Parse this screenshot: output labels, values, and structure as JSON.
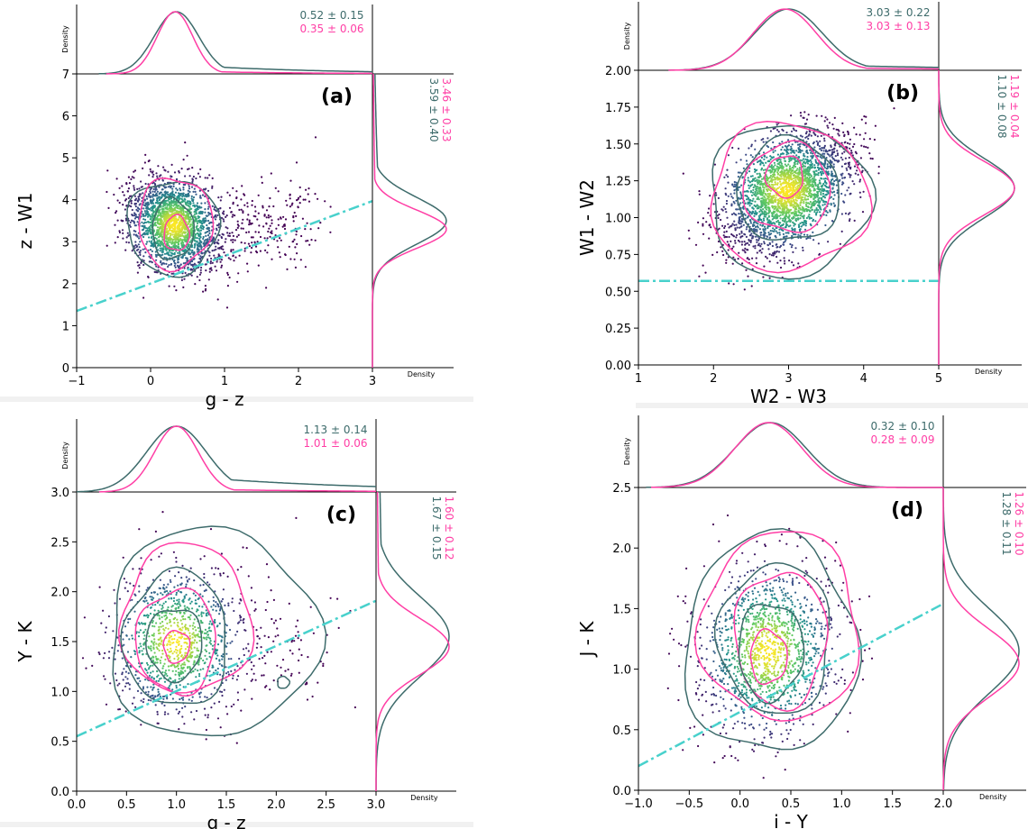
{
  "figure": {
    "density_label": "Density"
  },
  "colors": {
    "sample_a": "#3d6b6b",
    "sample_b": "#ff3ea5",
    "cut_line": "#48d1cc",
    "spine": "#000000"
  },
  "chart_data": [
    {
      "type": "scatter",
      "panel_label": "(a)",
      "xlabel": "g - z",
      "ylabel": "z - W1",
      "xlim": [
        -1,
        3
      ],
      "ylim": [
        0,
        7
      ],
      "xticks": [
        -1,
        0,
        1,
        2,
        3
      ],
      "xtick_labels": [
        "−1",
        "0",
        "1",
        "2",
        "3"
      ],
      "yticks": [
        0,
        1,
        2,
        3,
        4,
        5,
        6,
        7
      ],
      "ytick_labels": [
        "0",
        "1",
        "2",
        "3",
        "4",
        "5",
        "6",
        "7"
      ],
      "grid": false,
      "cloud": {
        "center": [
          0.32,
          3.4
        ],
        "sigma": [
          0.3,
          0.55
        ],
        "rho": -0.25,
        "count": 2400,
        "tail_x": 1.6
      },
      "contours": [
        {
          "series": "sample_a",
          "center": [
            0.3,
            3.35
          ],
          "radius": [
            0.62,
            1.12
          ]
        },
        {
          "series": "sample_b",
          "center": [
            0.33,
            3.45
          ],
          "radius": [
            0.5,
            1.08
          ]
        },
        {
          "series": "sample_a",
          "center": [
            0.3,
            3.3
          ],
          "radius": [
            0.28,
            0.72
          ]
        },
        {
          "series": "sample_b",
          "center": [
            0.35,
            3.2
          ],
          "radius": [
            0.17,
            0.42
          ]
        }
      ],
      "cut_line": {
        "x": [
          -1,
          3
        ],
        "y": [
          1.35,
          3.97
        ]
      },
      "stats_x": [
        "0.52 ± 0.15",
        "0.35 ± 0.06"
      ],
      "stats_y": [
        "3.59 ± 0.40",
        "3.46 ± 0.33"
      ],
      "marginal_x": [
        {
          "series": "sample_a",
          "mu": 0.35,
          "sigma": 0.3,
          "tail": 0.15
        },
        {
          "series": "sample_b",
          "mu": 0.33,
          "sigma": 0.24,
          "tail": 0.05
        }
      ],
      "marginal_y": [
        {
          "series": "sample_a",
          "mu": 3.5,
          "sigma": 0.55,
          "tail": 0.1
        },
        {
          "series": "sample_b",
          "mu": 3.3,
          "sigma": 0.45,
          "tail": 0.05
        }
      ]
    },
    {
      "type": "scatter",
      "panel_label": "(b)",
      "xlabel": "W2 - W3",
      "ylabel": "W1 - W2",
      "xlim": [
        1,
        5
      ],
      "ylim": [
        0,
        2
      ],
      "xticks": [
        1,
        2,
        3,
        4,
        5
      ],
      "xtick_labels": [
        "1",
        "2",
        "3",
        "4",
        "5"
      ],
      "yticks": [
        0,
        0.25,
        0.5,
        0.75,
        1,
        1.25,
        1.5,
        1.75,
        2
      ],
      "ytick_labels": [
        "0.00",
        "0.25",
        "0.50",
        "0.75",
        "1.00",
        "1.25",
        "1.50",
        "1.75",
        "2.00"
      ],
      "grid": false,
      "cloud": {
        "center": [
          2.98,
          1.18
        ],
        "sigma": [
          0.42,
          0.2
        ],
        "rho": 0.45,
        "count": 2600,
        "tail_x": 0
      },
      "contours": [
        {
          "series": "sample_a",
          "center": [
            3.0,
            1.12
          ],
          "radius": [
            1.07,
            0.52
          ]
        },
        {
          "series": "sample_b",
          "center": [
            3.0,
            1.14
          ],
          "radius": [
            1.05,
            0.5
          ]
        },
        {
          "series": "sample_a",
          "center": [
            3.0,
            1.18
          ],
          "radius": [
            0.68,
            0.35
          ]
        },
        {
          "series": "sample_b",
          "center": [
            2.98,
            1.2
          ],
          "radius": [
            0.58,
            0.3
          ]
        },
        {
          "series": "sample_b",
          "center": [
            2.95,
            1.28
          ],
          "radius": [
            0.25,
            0.14
          ]
        }
      ],
      "cut_line": {
        "x": [
          1,
          5
        ],
        "y": [
          0.57,
          0.57
        ]
      },
      "stats_x": [
        "3.03 ± 0.22",
        "3.03 ± 0.13"
      ],
      "stats_y": [
        "1.10 ± 0.08",
        "1.19 ± 0.04"
      ],
      "marginal_x": [
        {
          "series": "sample_a",
          "mu": 3.0,
          "sigma": 0.45,
          "tail": 0.1
        },
        {
          "series": "sample_b",
          "mu": 2.95,
          "sigma": 0.42,
          "tail": 0.05
        }
      ],
      "marginal_y": [
        {
          "series": "sample_a",
          "mu": 1.2,
          "sigma": 0.2,
          "tail": 0.0
        },
        {
          "series": "sample_b",
          "mu": 1.2,
          "sigma": 0.18,
          "tail": 0.0
        }
      ]
    },
    {
      "type": "scatter",
      "panel_label": "(c)",
      "xlabel": "g - z",
      "ylabel": "Y - K",
      "xlim": [
        0,
        3
      ],
      "ylim": [
        0,
        3
      ],
      "xticks": [
        0,
        0.5,
        1,
        1.5,
        2,
        2.5,
        3
      ],
      "xtick_labels": [
        "0.0",
        "0.5",
        "1.0",
        "1.5",
        "2.0",
        "2.5",
        "3.0"
      ],
      "yticks": [
        0,
        0.5,
        1,
        1.5,
        2,
        2.5,
        3
      ],
      "ytick_labels": [
        "0.0",
        "0.5",
        "1.0",
        "1.5",
        "2.0",
        "2.5",
        "3.0"
      ],
      "grid": false,
      "cloud": {
        "center": [
          1.0,
          1.5
        ],
        "sigma": [
          0.32,
          0.35
        ],
        "rho": 0.1,
        "count": 1200,
        "tail_x": 1.2
      },
      "contours": [
        {
          "series": "sample_a",
          "center": [
            1.35,
            1.58
          ],
          "radius": [
            1.05,
            1.05
          ]
        },
        {
          "series": "sample_b",
          "center": [
            1.1,
            1.72
          ],
          "radius": [
            0.65,
            0.75
          ]
        },
        {
          "series": "sample_a",
          "center": [
            1.0,
            1.52
          ],
          "radius": [
            0.52,
            0.68
          ]
        },
        {
          "series": "sample_b",
          "center": [
            1.0,
            1.5
          ],
          "radius": [
            0.4,
            0.52
          ]
        },
        {
          "series": "sample_a",
          "center": [
            0.98,
            1.48
          ],
          "radius": [
            0.28,
            0.36
          ]
        },
        {
          "series": "sample_b",
          "center": [
            1.0,
            1.45
          ],
          "radius": [
            0.13,
            0.16
          ]
        },
        {
          "series": "sample_a",
          "center": [
            2.07,
            1.09
          ],
          "radius": [
            0.06,
            0.06
          ]
        }
      ],
      "cut_line": {
        "x": [
          0,
          3
        ],
        "y": [
          0.55,
          1.91
        ]
      },
      "stats_x": [
        "1.13 ± 0.14",
        "1.01 ± 0.06"
      ],
      "stats_y": [
        "1.67 ± 0.15",
        "1.60 ± 0.12"
      ],
      "marginal_x": [
        {
          "series": "sample_a",
          "mu": 1.0,
          "sigma": 0.3,
          "tail": 0.25
        },
        {
          "series": "sample_b",
          "mu": 1.0,
          "sigma": 0.22,
          "tail": 0.05
        }
      ],
      "marginal_y": [
        {
          "series": "sample_a",
          "mu": 1.55,
          "sigma": 0.4,
          "tail": 0.1
        },
        {
          "series": "sample_b",
          "mu": 1.45,
          "sigma": 0.28,
          "tail": 0.05
        }
      ]
    },
    {
      "type": "scatter",
      "panel_label": "(d)",
      "xlabel": "i - Y",
      "ylabel": "J - K",
      "xlim": [
        -1,
        2
      ],
      "ylim": [
        0,
        2.5
      ],
      "xticks": [
        -1,
        -0.5,
        0,
        0.5,
        1,
        1.5,
        2
      ],
      "xtick_labels": [
        "−1.0",
        "−0.5",
        "0.0",
        "0.5",
        "1.0",
        "1.5",
        "2.0"
      ],
      "yticks": [
        0,
        0.5,
        1,
        1.5,
        2,
        2.5
      ],
      "ytick_labels": [
        "0.0",
        "0.5",
        "1.0",
        "1.5",
        "2.0",
        "2.5"
      ],
      "grid": false,
      "cloud": {
        "center": [
          0.28,
          1.15
        ],
        "sigma": [
          0.33,
          0.35
        ],
        "rho": 0.15,
        "count": 1400,
        "tail_x": 0
      },
      "contours": [
        {
          "series": "sample_a",
          "center": [
            0.3,
            1.2
          ],
          "radius": [
            0.85,
            0.9
          ]
        },
        {
          "series": "sample_b",
          "center": [
            0.4,
            1.35
          ],
          "radius": [
            0.78,
            0.78
          ]
        },
        {
          "series": "sample_a",
          "center": [
            0.35,
            1.25
          ],
          "radius": [
            0.55,
            0.62
          ]
        },
        {
          "series": "sample_b",
          "center": [
            0.4,
            1.25
          ],
          "radius": [
            0.45,
            0.56
          ]
        },
        {
          "series": "sample_a",
          "center": [
            0.3,
            1.15
          ],
          "radius": [
            0.32,
            0.4
          ]
        },
        {
          "series": "sample_b",
          "center": [
            0.28,
            1.1
          ],
          "radius": [
            0.18,
            0.22
          ]
        }
      ],
      "cut_line": {
        "x": [
          -1,
          2
        ],
        "y": [
          0.2,
          1.54
        ]
      },
      "stats_x": [
        "0.32 ± 0.10",
        "0.28 ± 0.09"
      ],
      "stats_y": [
        "1.28 ± 0.11",
        "1.26 ± 0.10"
      ],
      "marginal_x": [
        {
          "series": "sample_a",
          "mu": 0.3,
          "sigma": 0.35,
          "tail": 0.0
        },
        {
          "series": "sample_b",
          "mu": 0.28,
          "sigma": 0.33,
          "tail": 0.0
        }
      ],
      "marginal_y": [
        {
          "series": "sample_a",
          "mu": 1.15,
          "sigma": 0.35,
          "tail": 0.0
        },
        {
          "series": "sample_b",
          "mu": 1.05,
          "sigma": 0.28,
          "tail": 0.0
        }
      ]
    }
  ]
}
